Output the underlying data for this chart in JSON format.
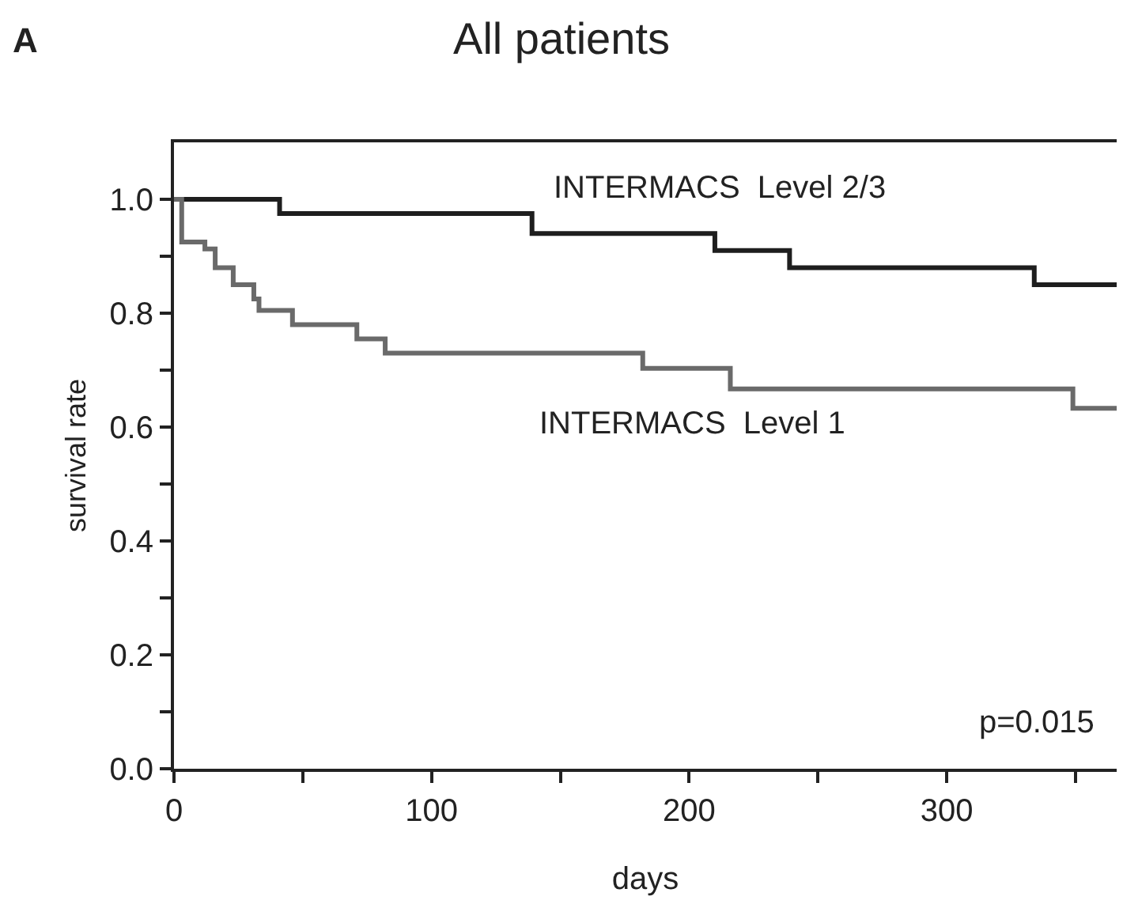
{
  "chart_data": {
    "type": "step",
    "title": "All patients",
    "xlabel": "days",
    "ylabel": "survival rate",
    "annotations": [
      "A",
      "p=0.015"
    ],
    "series": [
      {
        "name": "INTERMACS  Level 2/3",
        "color": "#1e1e1e",
        "x": [
          0,
          41,
          139,
          210,
          239,
          334,
          366
        ],
        "values": [
          1.0,
          0.975,
          0.94,
          0.91,
          0.88,
          0.85,
          0.85
        ]
      },
      {
        "name": "INTERMACS  Level 1",
        "color": "#6a6a6a",
        "x": [
          0,
          3,
          12,
          16,
          23,
          31,
          33,
          46,
          71,
          82,
          182,
          216,
          349,
          366
        ],
        "values": [
          1.0,
          0.925,
          0.913,
          0.88,
          0.85,
          0.825,
          0.805,
          0.78,
          0.755,
          0.73,
          0.703,
          0.667,
          0.633,
          0.633
        ]
      }
    ],
    "xlim": [
      0,
      366
    ],
    "ylim": [
      0,
      1.1
    ],
    "xticks": [
      0,
      {
        "value": 50,
        "label": null
      },
      100,
      {
        "value": 150,
        "label": null
      },
      200,
      {
        "value": 250,
        "label": null
      },
      300,
      {
        "value": 350,
        "label": null
      }
    ],
    "yticks": [
      {
        "value": 0,
        "label": "0.0"
      },
      {
        "value": 0.1,
        "label": null
      },
      {
        "value": 0.2,
        "label": "0.2"
      },
      {
        "value": 0.3,
        "label": null
      },
      {
        "value": 0.4,
        "label": "0.4"
      },
      {
        "value": 0.5,
        "label": null
      },
      {
        "value": 0.6,
        "label": "0.6"
      },
      {
        "value": 0.7,
        "label": null
      },
      {
        "value": 0.8,
        "label": "0.8"
      },
      {
        "value": 0.9,
        "label": null
      },
      {
        "value": 1,
        "label": "1.0"
      }
    ],
    "legend": false,
    "marker": "none",
    "line_style": "solid"
  }
}
